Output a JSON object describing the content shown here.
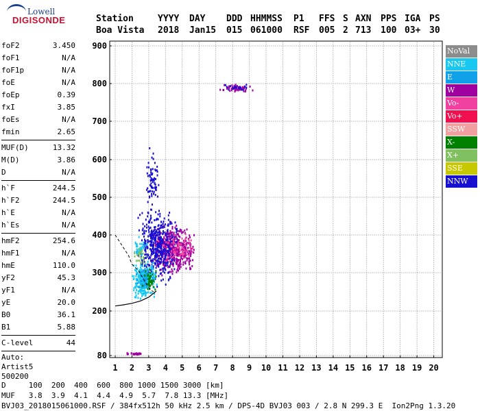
{
  "logo": {
    "line1": "Lowell",
    "line2": "DIGISONDE"
  },
  "header": {
    "labels": [
      "Station",
      "YYYY",
      "DAY",
      "DDD",
      "HHMMSS",
      "P1",
      "FFS",
      "S",
      "AXN",
      "PPS",
      "IGA",
      "PS"
    ],
    "values": [
      "Boa Vista",
      "2018",
      "Jan15",
      "015",
      "061000",
      "RSF",
      "005",
      "2",
      "713",
      "100",
      "03+",
      "30"
    ]
  },
  "params": {
    "group1": [
      {
        "k": "foF2",
        "v": "3.450"
      },
      {
        "k": "foF1",
        "v": "N/A"
      },
      {
        "k": "foF1p",
        "v": "N/A"
      },
      {
        "k": "foE",
        "v": "N/A"
      },
      {
        "k": "foEp",
        "v": "0.39"
      },
      {
        "k": "fxI",
        "v": "3.85"
      },
      {
        "k": "foEs",
        "v": "N/A"
      },
      {
        "k": "fmin",
        "v": "2.65"
      }
    ],
    "group2": [
      {
        "k": "MUF(D)",
        "v": "13.32"
      },
      {
        "k": "M(D)",
        "v": "3.86"
      },
      {
        "k": "D",
        "v": "N/A"
      }
    ],
    "group3": [
      {
        "k": "h`F",
        "v": "244.5"
      },
      {
        "k": "h`F2",
        "v": "244.5"
      },
      {
        "k": "h`E",
        "v": "N/A"
      },
      {
        "k": "h`Es",
        "v": "N/A"
      }
    ],
    "group4": [
      {
        "k": "hmF2",
        "v": "254.6"
      },
      {
        "k": "hmF1",
        "v": "N/A"
      },
      {
        "k": "hmE",
        "v": "110.0"
      },
      {
        "k": "yF2",
        "v": "45.3"
      },
      {
        "k": "yF1",
        "v": "N/A"
      },
      {
        "k": "yE",
        "v": "20.0"
      },
      {
        "k": "B0",
        "v": "36.1"
      },
      {
        "k": "B1",
        "v": "5.88"
      }
    ],
    "group5": [
      {
        "k": "C-level",
        "v": "44"
      }
    ],
    "auto": [
      "Auto:",
      "Artist5",
      "500200"
    ]
  },
  "legend": [
    {
      "label": "NoVal",
      "color": "#8c8c8c"
    },
    {
      "label": "NNE",
      "color": "#18c8f0"
    },
    {
      "label": "E",
      "color": "#10a0e8"
    },
    {
      "label": "W",
      "color": "#a000a0"
    },
    {
      "label": "Vo-",
      "color": "#f040a0"
    },
    {
      "label": "Vo+",
      "color": "#f01050"
    },
    {
      "label": "SSW",
      "color": "#f0a0a0"
    },
    {
      "label": "X-",
      "color": "#008000"
    },
    {
      "label": "X+",
      "color": "#80c060"
    },
    {
      "label": "SSE",
      "color": "#c8c800"
    },
    {
      "label": "NNW",
      "color": "#1810d0"
    }
  ],
  "footer": {
    "line1": "D     100  200  400  600  800 1000 1500 3000 [km]",
    "line2": "MUF   3.8  3.9  4.1  4.4  4.9  5.7  7.8 13.3 [MHz]",
    "line3": "BVJ03_2018015061000.RSF / 384fx512h 50 kHz 2.5 km / DPS-4D BVJ03 003 / 2.8 N 299.3 E  Ion2Png 1.3.20"
  },
  "chart_data": {
    "type": "scatter",
    "x_ticks": [
      1,
      2,
      3,
      4,
      5,
      6,
      7,
      8,
      9,
      10,
      11,
      12,
      13,
      14,
      15,
      16,
      17,
      18,
      19,
      20
    ],
    "y_ticks": [
      80,
      200,
      300,
      400,
      500,
      600,
      700,
      800,
      900
    ],
    "xlim": [
      1,
      20
    ],
    "ylim": [
      80,
      900
    ],
    "grid": true,
    "legend_position": "right",
    "clusters": [
      {
        "color": "#a000a0",
        "x_range": [
          7.0,
          9.3
        ],
        "y_range": [
          775,
          800
        ],
        "count": 60
      },
      {
        "color": "#1810d0",
        "x_range": [
          7.5,
          9.0
        ],
        "y_range": [
          780,
          800
        ],
        "count": 20
      },
      {
        "color": "#a000a0",
        "x_range": [
          3.0,
          5.8
        ],
        "y_range": [
          280,
          440
        ],
        "count": 500
      },
      {
        "color": "#1810d0",
        "x_range": [
          2.2,
          4.8
        ],
        "y_range": [
          250,
          500
        ],
        "count": 450
      },
      {
        "color": "#1810d0",
        "x_range": [
          2.8,
          3.6
        ],
        "y_range": [
          450,
          650
        ],
        "count": 70
      },
      {
        "color": "#18c8f0",
        "x_range": [
          2.0,
          3.5
        ],
        "y_range": [
          220,
          340
        ],
        "count": 260
      },
      {
        "color": "#18c8f0",
        "x_range": [
          2.0,
          3.0
        ],
        "y_range": [
          330,
          400
        ],
        "count": 40
      },
      {
        "color": "#10a0e8",
        "x_range": [
          2.2,
          3.4
        ],
        "y_range": [
          240,
          330
        ],
        "count": 60
      },
      {
        "color": "#008000",
        "x_range": [
          2.6,
          3.5
        ],
        "y_range": [
          235,
          320
        ],
        "count": 40
      },
      {
        "color": "#80c060",
        "x_range": [
          2.0,
          3.0
        ],
        "y_range": [
          300,
          380
        ],
        "count": 25
      },
      {
        "color": "#f040a0",
        "x_range": [
          3.8,
          5.8
        ],
        "y_range": [
          320,
          410
        ],
        "count": 80
      },
      {
        "color": "#a000a0",
        "x_range": [
          1.6,
          2.9
        ],
        "y_range": [
          80,
          88
        ],
        "count": 25
      }
    ],
    "profile": [
      [
        1.0,
        400
      ],
      [
        1.8,
        345
      ],
      [
        2.0,
        322
      ],
      [
        2.4,
        305
      ],
      [
        2.8,
        275
      ],
      [
        3.1,
        255
      ],
      [
        3.3,
        250
      ]
    ],
    "trace": [
      [
        1.0,
        213
      ],
      [
        1.5,
        216
      ],
      [
        2.0,
        220
      ],
      [
        2.5,
        226
      ],
      [
        3.0,
        236
      ],
      [
        3.45,
        252
      ]
    ]
  }
}
